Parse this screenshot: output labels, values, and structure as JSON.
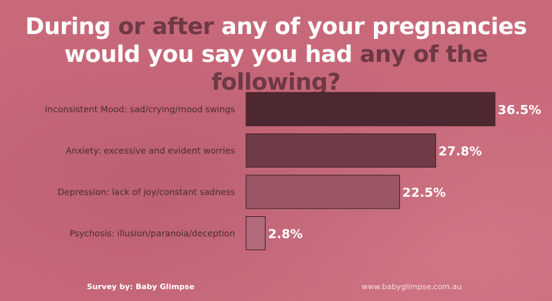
{
  "title": {
    "line1": [
      {
        "text": "During ",
        "hl": false
      },
      {
        "text": "or after",
        "hl": true
      },
      {
        "text": " any of your pregnancies",
        "hl": false
      }
    ],
    "line2": [
      {
        "text": "would you say you had ",
        "hl": false
      },
      {
        "text": "any of the following?",
        "hl": true
      }
    ]
  },
  "chart_data": {
    "type": "bar",
    "orientation": "horizontal",
    "categories": [
      "Inconsistent Mood: sad/crying/mood swings",
      "Anxiety: excessive and evident worries",
      "Depression: lack of joy/constant sadness",
      "Psychosis: illusion/paranoia/deception"
    ],
    "values": [
      36.5,
      27.8,
      22.5,
      2.8
    ],
    "value_labels": [
      "36.5%",
      "27.8%",
      "22.5%",
      "2.8%"
    ],
    "bar_colors": [
      "#4d2830",
      "#6f3b46",
      "#9b5666",
      "#b36a7a"
    ],
    "xlim": [
      0,
      36.5
    ],
    "grid": false,
    "legend": "none"
  },
  "footer": {
    "survey": "Survey by: Baby Glimpse",
    "website": "www.babyglimpse.com.au"
  }
}
